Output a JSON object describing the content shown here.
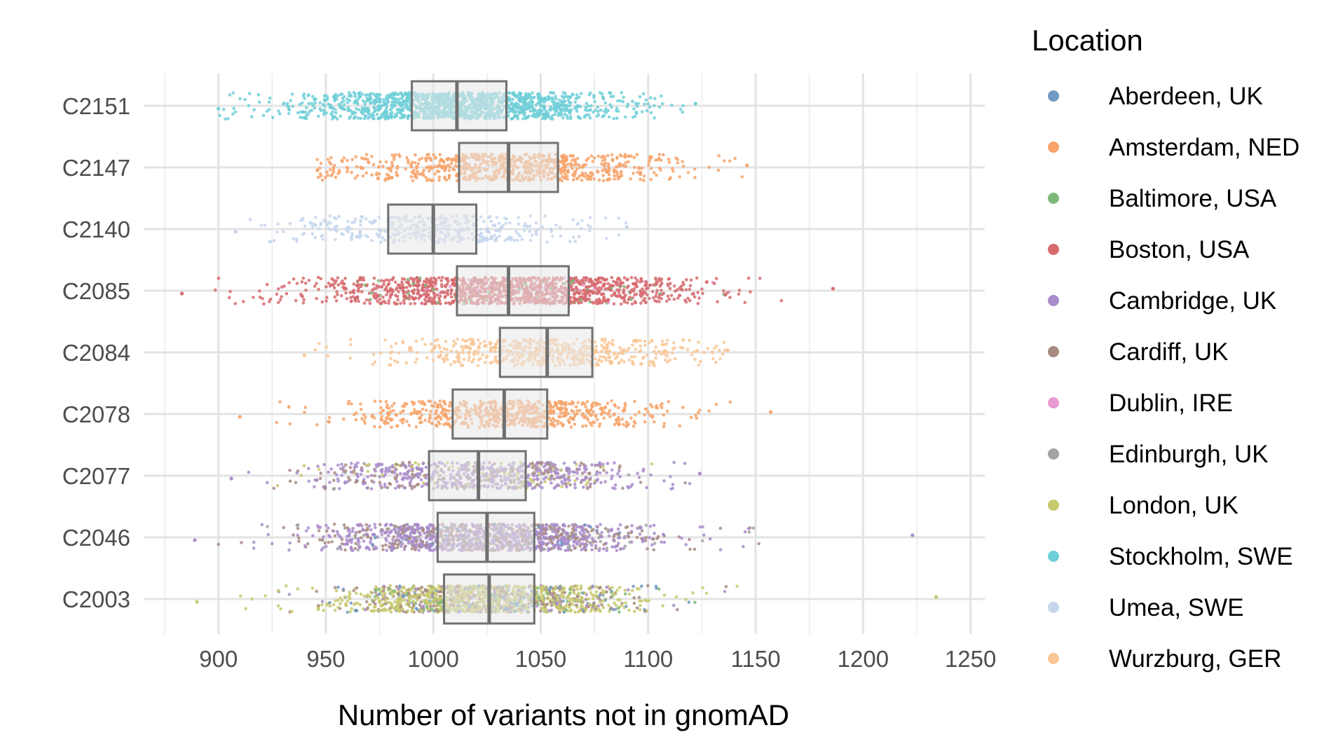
{
  "chart_data": {
    "type": "scatter",
    "subtype": "jitter strip with box plots",
    "title": "",
    "xlabel": "Number of variants not in gnomAD",
    "ylabel": "",
    "xlim": [
      875,
      1255
    ],
    "x_ticks": [
      900,
      950,
      1000,
      1050,
      1100,
      1150,
      1200,
      1250
    ],
    "x_tick_labels": [
      "900",
      "950",
      "1000",
      "1050",
      "1100",
      "1150",
      "1200",
      "1250"
    ],
    "grid": true,
    "legend": {
      "title": "Location",
      "placement": "right",
      "entries": [
        {
          "label": "Aberdeen, UK",
          "color": "#6f99c2"
        },
        {
          "label": "Amsterdam, NED",
          "color": "#f7a36a"
        },
        {
          "label": "Baltimore, USA",
          "color": "#7db97a"
        },
        {
          "label": "Boston, USA",
          "color": "#d66a6e"
        },
        {
          "label": "Cambridge, UK",
          "color": "#a98ccc"
        },
        {
          "label": "Cardiff, UK",
          "color": "#a88b83"
        },
        {
          "label": "Dublin, IRE",
          "color": "#e89ad0"
        },
        {
          "label": "Edinburgh, UK",
          "color": "#a3a3a3"
        },
        {
          "label": "London, UK",
          "color": "#c8c96e"
        },
        {
          "label": "Stockholm, SWE",
          "color": "#6ecfd8"
        },
        {
          "label": "Umea, SWE",
          "color": "#c6d6ec"
        },
        {
          "label": "Wurzburg, GER",
          "color": "#f9c796"
        }
      ]
    },
    "categories": [
      "C2151",
      "C2147",
      "C2140",
      "C2085",
      "C2084",
      "C2078",
      "C2077",
      "C2046",
      "C2003"
    ],
    "boxes": [
      {
        "category": "C2151",
        "q1": 990,
        "median": 1011,
        "q3": 1034,
        "min": 900,
        "max": 1122,
        "density": 1.0,
        "mix": [
          {
            "loc": 9,
            "w": 1
          }
        ]
      },
      {
        "category": "C2147",
        "q1": 1012,
        "median": 1035,
        "q3": 1058,
        "min": 946,
        "max": 1146,
        "density": 0.55,
        "mix": [
          {
            "loc": 1,
            "w": 1
          }
        ]
      },
      {
        "category": "C2140",
        "q1": 979,
        "median": 1000,
        "q3": 1020,
        "min": 908,
        "max": 1090,
        "density": 0.3,
        "mix": [
          {
            "loc": 10,
            "w": 1
          }
        ]
      },
      {
        "category": "C2085",
        "q1": 1011,
        "median": 1035,
        "q3": 1063,
        "min": 883,
        "max": 1186,
        "density": 1.0,
        "mix": [
          {
            "loc": 3,
            "w": 0.93
          },
          {
            "loc": 2,
            "w": 0.04
          },
          {
            "loc": 6,
            "w": 0.03
          }
        ]
      },
      {
        "category": "C2084",
        "q1": 1031,
        "median": 1053,
        "q3": 1074,
        "min": 940,
        "max": 1137,
        "density": 0.4,
        "mix": [
          {
            "loc": 11,
            "w": 1
          }
        ]
      },
      {
        "category": "C2078",
        "q1": 1009,
        "median": 1033,
        "q3": 1053,
        "min": 910,
        "max": 1157,
        "density": 0.5,
        "mix": [
          {
            "loc": 1,
            "w": 1
          }
        ]
      },
      {
        "category": "C2077",
        "q1": 998,
        "median": 1021,
        "q3": 1043,
        "min": 906,
        "max": 1124,
        "density": 0.55,
        "mix": [
          {
            "loc": 4,
            "w": 0.6
          },
          {
            "loc": 5,
            "w": 0.25
          },
          {
            "loc": 8,
            "w": 0.1
          },
          {
            "loc": 7,
            "w": 0.05
          }
        ]
      },
      {
        "category": "C2046",
        "q1": 1002,
        "median": 1025,
        "q3": 1047,
        "min": 889,
        "max": 1223,
        "density": 0.95,
        "mix": [
          {
            "loc": 4,
            "w": 0.55
          },
          {
            "loc": 5,
            "w": 0.3
          },
          {
            "loc": 0,
            "w": 0.05
          },
          {
            "loc": 7,
            "w": 0.1
          }
        ]
      },
      {
        "category": "C2003",
        "q1": 1005,
        "median": 1026,
        "q3": 1047,
        "min": 890,
        "max": 1234,
        "density": 1.0,
        "mix": [
          {
            "loc": 8,
            "w": 0.6
          },
          {
            "loc": 5,
            "w": 0.2
          },
          {
            "loc": 0,
            "w": 0.08
          },
          {
            "loc": 4,
            "w": 0.06
          },
          {
            "loc": 2,
            "w": 0.06
          }
        ]
      }
    ]
  }
}
